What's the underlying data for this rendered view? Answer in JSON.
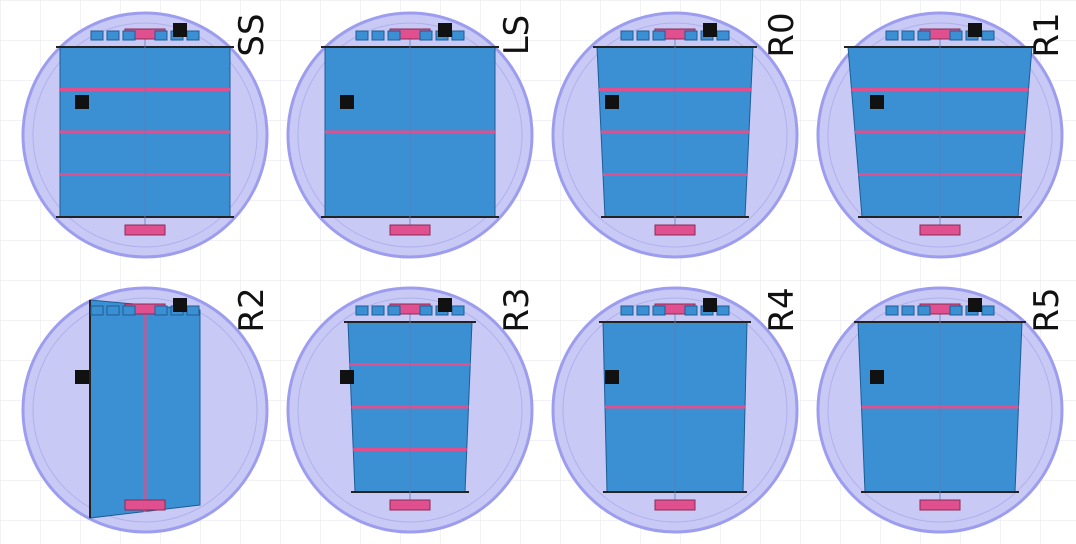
{
  "wafers": [
    {
      "label": "SS"
    },
    {
      "label": "LS"
    },
    {
      "label": "R0"
    },
    {
      "label": "R1"
    },
    {
      "label": "R2"
    },
    {
      "label": "R3"
    },
    {
      "label": "R4"
    },
    {
      "label": "R5"
    }
  ]
}
